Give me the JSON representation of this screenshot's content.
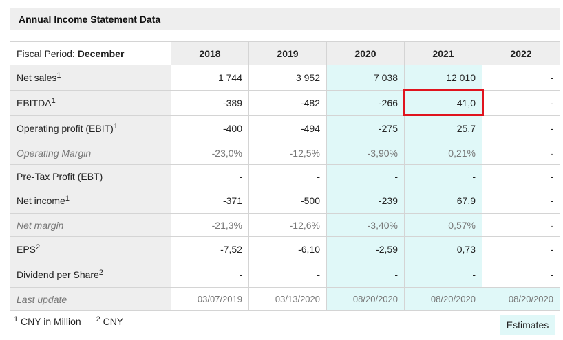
{
  "header": {
    "title": "Annual Income Statement Data"
  },
  "table": {
    "corner_prefix": "Fiscal Period: ",
    "corner_value": "December",
    "years": [
      "2018",
      "2019",
      "2020",
      "2021",
      "2022"
    ],
    "rows": [
      {
        "label": "Net sales",
        "sup": "1",
        "values": [
          "1 744",
          "3 952",
          "7 038",
          "12 010",
          "-"
        ]
      },
      {
        "label": "EBITDA",
        "sup": "1",
        "values": [
          "-389",
          "-482",
          "-266",
          "41,0",
          "-"
        ]
      },
      {
        "label": "Operating profit (EBIT)",
        "sup": "1",
        "values": [
          "-400",
          "-494",
          "-275",
          "25,7",
          "-"
        ]
      },
      {
        "label": "Operating Margin",
        "sup": "",
        "values": [
          "-23,0%",
          "-12,5%",
          "-3,90%",
          "0,21%",
          "-"
        ]
      },
      {
        "label": "Pre-Tax Profit (EBT)",
        "sup": "",
        "values": [
          "-",
          "-",
          "-",
          "-",
          "-"
        ]
      },
      {
        "label": "Net income",
        "sup": "1",
        "values": [
          "-371",
          "-500",
          "-239",
          "67,9",
          "-"
        ]
      },
      {
        "label": "Net margin",
        "sup": "",
        "values": [
          "-21,3%",
          "-12,6%",
          "-3,40%",
          "0,57%",
          "-"
        ]
      },
      {
        "label": "EPS",
        "sup": "2",
        "values": [
          "-7,52",
          "-6,10",
          "-2,59",
          "0,73",
          "-"
        ]
      },
      {
        "label": "Dividend per Share",
        "sup": "2",
        "values": [
          "-",
          "-",
          "-",
          "-",
          "-"
        ]
      },
      {
        "label": "Last update",
        "sup": "",
        "values": [
          "03/07/2019",
          "03/13/2020",
          "08/20/2020",
          "08/20/2020",
          "08/20/2020"
        ]
      }
    ]
  },
  "footnotes": {
    "note1_mark": "1",
    "note1_text": " CNY in Million",
    "note2_mark": "2",
    "note2_text": " CNY"
  },
  "estimates_label": "Estimates",
  "colors": {
    "estimate_bg": "#e0f8f8",
    "highlight_border": "#e0141e",
    "header_bg": "#eeeeee"
  }
}
